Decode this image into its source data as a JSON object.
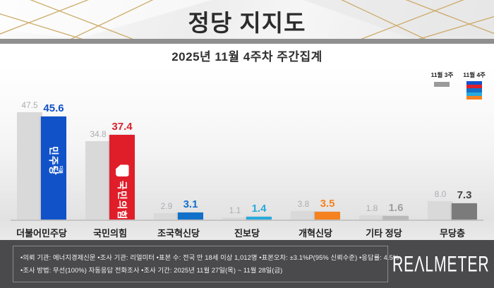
{
  "header": {
    "title": "정당 지지도"
  },
  "subtitle": "2025년 11월 4주차 주간집계",
  "legend": {
    "prev_label": "11월 3주",
    "curr_label": "11월 4주",
    "prev_color": "#9a9a9a",
    "stripe_colors": [
      "#1152c9",
      "#e01e2a",
      "#1170c9",
      "#29aadc",
      "#f5821f"
    ]
  },
  "chart_data": {
    "type": "bar",
    "title": "정당 지지도",
    "subtitle": "2025년 11월 4주차 주간집계",
    "categories": [
      "더불어민주당",
      "국민의힘",
      "조국혁신당",
      "진보당",
      "개혁신당",
      "기타 정당",
      "무당층"
    ],
    "series": [
      {
        "name": "11월 3주",
        "values": [
          47.5,
          34.8,
          2.9,
          1.1,
          3.8,
          1.8,
          8.0
        ]
      },
      {
        "name": "11월 4주",
        "values": [
          45.6,
          37.4,
          3.1,
          1.4,
          3.5,
          1.6,
          7.3
        ]
      }
    ],
    "unit": "%",
    "ylim": [
      0,
      50
    ],
    "legend_position": "top-right",
    "grid": false,
    "prev_bar_color": "#d9d9d9",
    "curr_bar_colors": [
      "#1152c9",
      "#e01e2a",
      "#1170c9",
      "#29aadc",
      "#f5821f",
      "#b9b9b9",
      "#7b7b7b"
    ],
    "prev_value_color": "#aaadb2",
    "curr_value_colors": [
      "#1152c9",
      "#d8232e",
      "#1170c9",
      "#29aadc",
      "#f5821f",
      "#9e9e9e",
      "#444444"
    ],
    "bar_logos": [
      {
        "text": "민주당",
        "small": "더불어"
      },
      {
        "text": "국민의힘",
        "bubble": true
      },
      null,
      null,
      null,
      null,
      null
    ]
  },
  "footer": {
    "line1": "•의뢰 기관: 에너지경제신문  •조사 기관: 리얼미터 •표본 수: 전국 만 18세 이상 1,012명 •표본오차: ±3.1%P(95% 신뢰수준) •응답률: 4.5%",
    "line2": "•조사 방법: 무선(100%) 자동응답 전화조사 •조사 기간: 2025년 11월 27일(목) ~ 11월 28일(금)",
    "logo": "REΛLMETER"
  }
}
